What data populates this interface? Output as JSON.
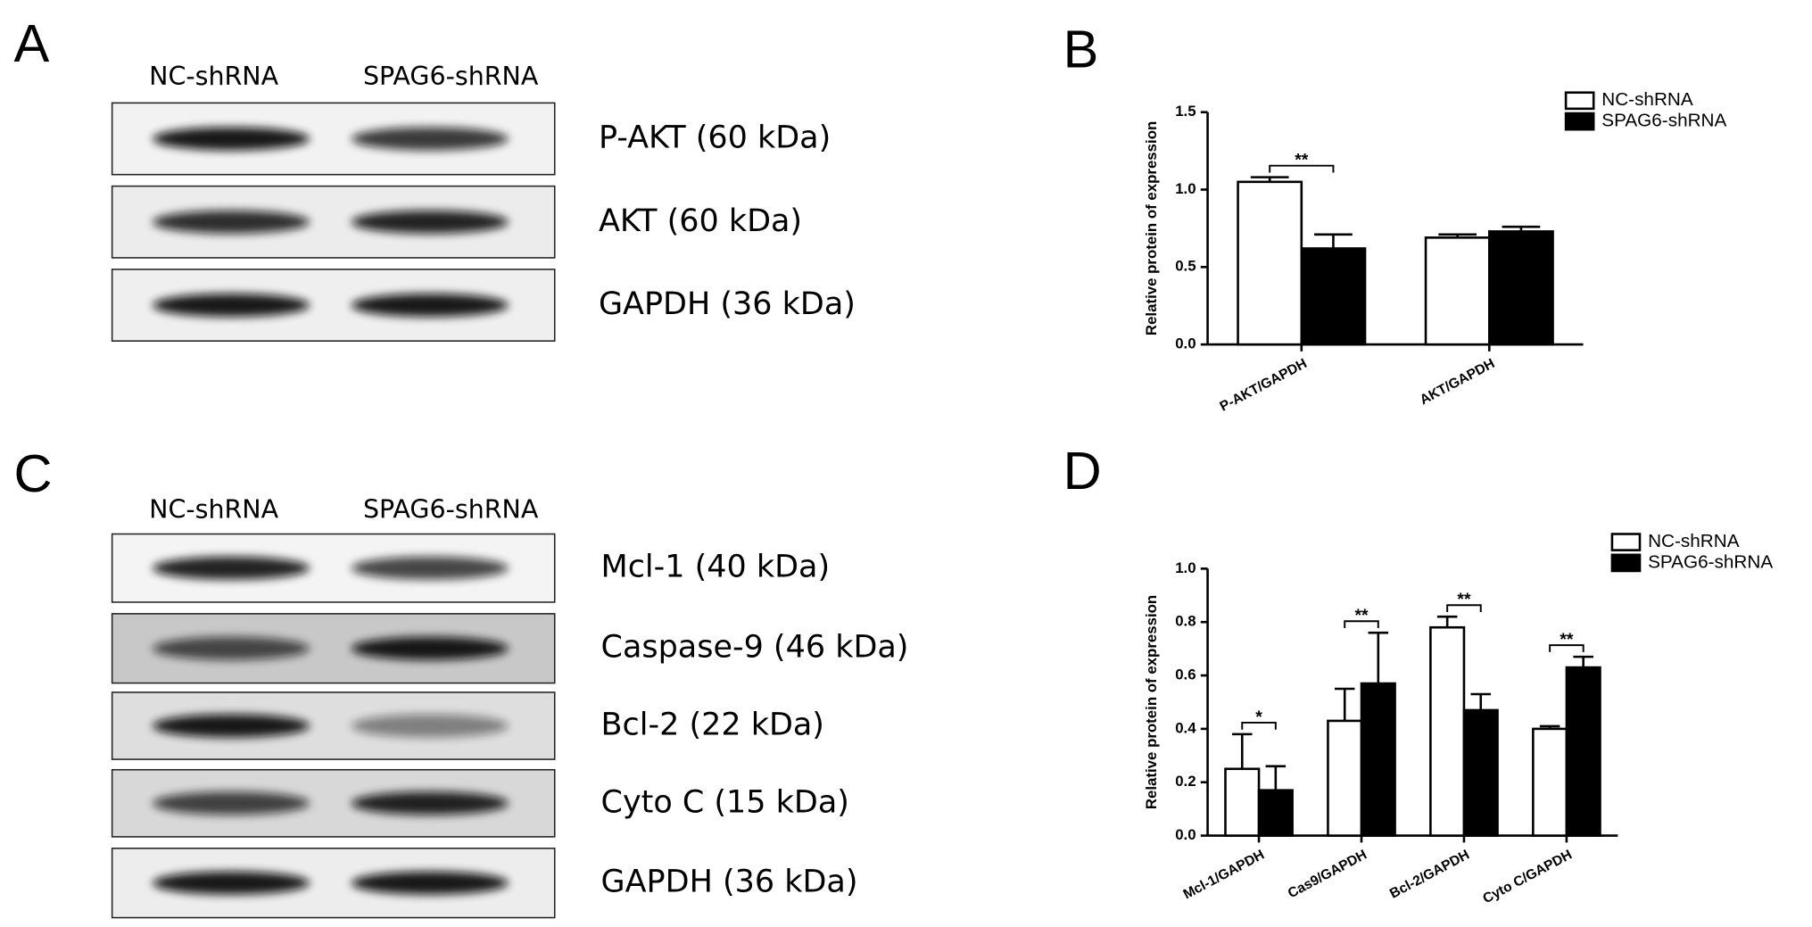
{
  "panels": {
    "A": {
      "label": "A",
      "lanes": [
        "NC-shRNA",
        "SPAG6-shRNA"
      ],
      "blots": [
        "P-AKT (60 kDa)",
        "AKT (60 kDa)",
        "GAPDH (36 kDa)"
      ]
    },
    "C": {
      "label": "C",
      "lanes": [
        "NC-shRNA",
        "SPAG6-shRNA"
      ],
      "blots": [
        "Mcl-1 (40 kDa)",
        "Caspase-9 (46 kDa)",
        "Bcl-2 (22 kDa)",
        "Cyto C (15 kDa)",
        "GAPDH (36 kDa)"
      ]
    }
  },
  "chart_data": [
    {
      "type": "bar",
      "panel_label": "B",
      "y_label": "Relative protein of expression",
      "categories": [
        "P-AKT/GAPDH",
        "AKT/GAPDH"
      ],
      "series": [
        {
          "name": "NC-shRNA",
          "color": "#ffffff",
          "values": [
            1.05,
            0.69
          ],
          "errors": [
            0.03,
            0.02
          ]
        },
        {
          "name": "SPAG6-shRNA",
          "color": "#000000",
          "values": [
            0.62,
            0.73
          ],
          "errors": [
            0.09,
            0.03
          ]
        }
      ],
      "significance": [
        "**",
        null
      ],
      "ylim": [
        0,
        1.5
      ],
      "yticks": [
        {
          "value": 0,
          "label": "0.0"
        },
        {
          "value": 0.5,
          "label": "0.5"
        },
        {
          "value": 1,
          "label": "1.0"
        },
        {
          "value": 1.5,
          "label": "1.5"
        }
      ],
      "legend": "upper right"
    },
    {
      "type": "bar",
      "panel_label": "D",
      "y_label": "Relative protein of expression",
      "categories": [
        "Mcl-1/GAPDH",
        "Cas9/GAPDH",
        "Bcl-2/GAPDH",
        "Cyto C/GAPDH"
      ],
      "series": [
        {
          "name": "NC-shRNA",
          "color": "#ffffff",
          "values": [
            0.25,
            0.43,
            0.78,
            0.4
          ],
          "errors": [
            0.13,
            0.12,
            0.04,
            0.01
          ]
        },
        {
          "name": "SPAG6-shRNA",
          "color": "#000000",
          "values": [
            0.17,
            0.57,
            0.47,
            0.63
          ],
          "errors": [
            0.09,
            0.19,
            0.06,
            0.04
          ]
        }
      ],
      "significance": [
        "*",
        "**",
        "**",
        "**"
      ],
      "ylim": [
        0,
        1
      ],
      "yticks": [
        {
          "value": 0,
          "label": "0.0"
        },
        {
          "value": 0.2,
          "label": "0.2"
        },
        {
          "value": 0.4,
          "label": "0.4"
        },
        {
          "value": 0.6,
          "label": "0.6"
        },
        {
          "value": 0.8,
          "label": "0.8"
        },
        {
          "value": 1,
          "label": "1.0"
        }
      ],
      "legend": "upper right"
    }
  ]
}
